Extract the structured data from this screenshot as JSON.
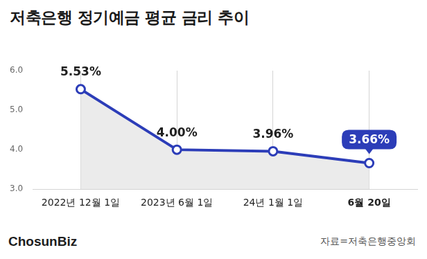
{
  "chart_data": {
    "type": "line",
    "title": "저축은행 정기예금 평균 금리 추이",
    "source": "자료=저축은행중앙회",
    "credit": "ChosunBiz",
    "categories": [
      "2022년 12월 1일",
      "2023년 6월 1일",
      "24년 1월 1일",
      "6월 20일"
    ],
    "values": [
      5.53,
      4.0,
      3.96,
      3.66
    ],
    "value_labels": [
      "5.53%",
      "4.00%",
      "3.96%",
      "3.66%"
    ],
    "color": "#2c3db8",
    "ylim": [
      3,
      6
    ],
    "yticks": [
      {
        "value": 3,
        "label": "3.0"
      },
      {
        "value": 4,
        "label": "4.0"
      },
      {
        "value": 5,
        "label": "5.0"
      },
      {
        "value": 6,
        "label": "6.0"
      }
    ],
    "grid": true,
    "data_labels": true,
    "marker": "circle"
  }
}
